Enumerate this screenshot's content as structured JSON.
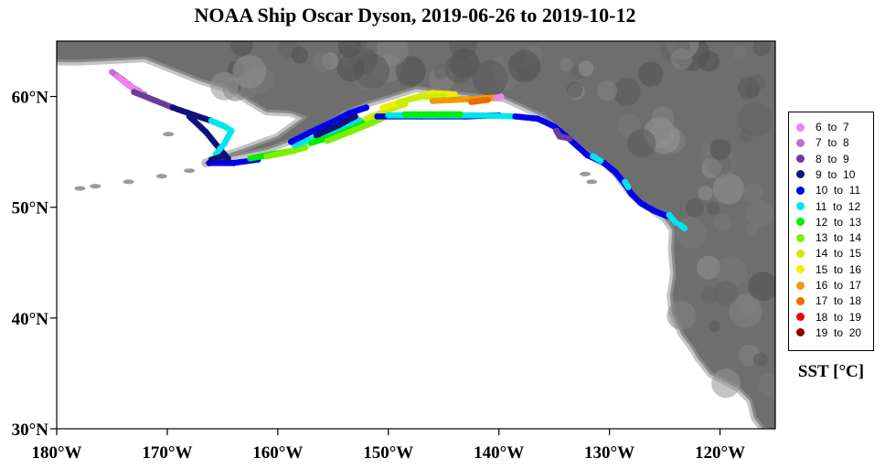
{
  "title": "NOAA Ship Oscar Dyson, 2019-06-26 to 2019-10-12",
  "map": {
    "lon_range": [
      -180,
      -115
    ],
    "lat_range": [
      30,
      65
    ],
    "land_color": "#6e6e6e",
    "land_edge_color": "#c4c4c4",
    "lat_ticks": [
      {
        "value": 30,
        "label": "30°N"
      },
      {
        "value": 40,
        "label": "40°N"
      },
      {
        "value": 50,
        "label": "50°N"
      },
      {
        "value": 60,
        "label": "60°N"
      }
    ],
    "lon_ticks": [
      {
        "value": -180,
        "label": "180°W"
      },
      {
        "value": -170,
        "label": "170°W"
      },
      {
        "value": -160,
        "label": "160°W"
      },
      {
        "value": -150,
        "label": "150°W"
      },
      {
        "value": -140,
        "label": "140°W"
      },
      {
        "value": -130,
        "label": "130°W"
      },
      {
        "value": -120,
        "label": "120°W"
      }
    ]
  },
  "legend": {
    "title": "SST [°C]",
    "items": [
      {
        "label": "6  to  7",
        "color": "#ee82ee"
      },
      {
        "label": "7  to  8",
        "color": "#c36bd6"
      },
      {
        "label": "8  to  9",
        "color": "#6a3d9a"
      },
      {
        "label": "9  to  10",
        "color": "#11117a"
      },
      {
        "label": "10  to  11",
        "color": "#0000ee"
      },
      {
        "label": "11  to  12",
        "color": "#00e5ee"
      },
      {
        "label": "12  to  13",
        "color": "#00ee00"
      },
      {
        "label": "13  to  14",
        "color": "#7fee00"
      },
      {
        "label": "14  to  15",
        "color": "#c8ee00"
      },
      {
        "label": "15  to  16",
        "color": "#eeee00"
      },
      {
        "label": "16  to  17",
        "color": "#ee9a00"
      },
      {
        "label": "17  to  18",
        "color": "#ee6a00"
      },
      {
        "label": "18  to  19",
        "color": "#ee0000"
      },
      {
        "label": "19  to  20",
        "color": "#8b0000"
      }
    ]
  },
  "track_segments": [
    {
      "bin": 1,
      "points": [
        [
          -175.0,
          62.2
        ],
        [
          -174.0,
          61.5
        ],
        [
          -173.0,
          60.7
        ]
      ]
    },
    {
      "bin": 0,
      "points": [
        [
          -174.5,
          61.8
        ],
        [
          -173.5,
          61.0
        ],
        [
          -172.5,
          60.5
        ]
      ]
    },
    {
      "bin": 2,
      "points": [
        [
          -173.0,
          60.4
        ],
        [
          -171.0,
          59.6
        ],
        [
          -169.5,
          59.0
        ]
      ]
    },
    {
      "bin": 3,
      "points": [
        [
          -169.5,
          59.0
        ],
        [
          -167.5,
          58.3
        ],
        [
          -166.0,
          57.8
        ]
      ]
    },
    {
      "bin": 3,
      "points": [
        [
          -168.0,
          58.2
        ],
        [
          -166.5,
          56.8
        ],
        [
          -165.2,
          55.2
        ],
        [
          -164.5,
          54.4
        ]
      ]
    },
    {
      "bin": 5,
      "points": [
        [
          -166.0,
          57.8
        ],
        [
          -164.8,
          57.3
        ],
        [
          -164.2,
          56.9
        ]
      ]
    },
    {
      "bin": 5,
      "points": [
        [
          -164.2,
          56.9
        ],
        [
          -164.8,
          55.8
        ],
        [
          -165.6,
          54.8
        ]
      ]
    },
    {
      "bin": 4,
      "points": [
        [
          -166.2,
          54.0
        ],
        [
          -164.0,
          54.0
        ],
        [
          -161.8,
          54.3
        ]
      ]
    },
    {
      "bin": 3,
      "points": [
        [
          -166.0,
          54.3
        ],
        [
          -165.0,
          54.6
        ],
        [
          -164.5,
          54.4
        ]
      ]
    },
    {
      "bin": 6,
      "points": [
        [
          -162.5,
          54.4
        ],
        [
          -160.5,
          54.8
        ],
        [
          -158.5,
          55.1
        ]
      ]
    },
    {
      "bin": 7,
      "points": [
        [
          -161.0,
          54.6
        ],
        [
          -159.0,
          55.0
        ],
        [
          -157.5,
          55.4
        ]
      ]
    },
    {
      "bin": 5,
      "points": [
        [
          -158.5,
          55.6
        ],
        [
          -156.5,
          56.3
        ],
        [
          -154.5,
          57.0
        ],
        [
          -152.5,
          57.8
        ]
      ]
    },
    {
      "bin": 4,
      "points": [
        [
          -158.8,
          55.9
        ],
        [
          -157.0,
          56.8
        ],
        [
          -155.5,
          57.5
        ],
        [
          -153.5,
          58.5
        ],
        [
          -152.0,
          59.0
        ]
      ]
    },
    {
      "bin": 3,
      "points": [
        [
          -156.5,
          56.5
        ],
        [
          -154.5,
          57.4
        ],
        [
          -153.0,
          58.2
        ]
      ]
    },
    {
      "bin": 6,
      "points": [
        [
          -157.0,
          55.8
        ],
        [
          -155.0,
          56.4
        ],
        [
          -153.0,
          57.2
        ],
        [
          -151.5,
          58.0
        ]
      ]
    },
    {
      "bin": 7,
      "points": [
        [
          -155.5,
          56.0
        ],
        [
          -153.5,
          56.8
        ],
        [
          -151.5,
          57.6
        ],
        [
          -150.0,
          58.3
        ]
      ]
    },
    {
      "bin": 8,
      "points": [
        [
          -152.0,
          58.0
        ],
        [
          -150.0,
          58.8
        ],
        [
          -148.5,
          59.3
        ]
      ]
    },
    {
      "bin": 9,
      "points": [
        [
          -150.5,
          59.0
        ],
        [
          -148.0,
          59.8
        ],
        [
          -146.0,
          60.3
        ],
        [
          -144.0,
          60.2
        ]
      ]
    },
    {
      "bin": 8,
      "points": [
        [
          -149.0,
          59.5
        ],
        [
          -147.0,
          60.0
        ],
        [
          -145.0,
          60.0
        ]
      ]
    },
    {
      "bin": 10,
      "points": [
        [
          -146.0,
          59.6
        ],
        [
          -144.0,
          59.7
        ],
        [
          -142.0,
          59.8
        ],
        [
          -140.5,
          59.9
        ]
      ]
    },
    {
      "bin": 11,
      "points": [
        [
          -142.5,
          59.5
        ],
        [
          -141.0,
          59.7
        ]
      ]
    },
    {
      "bin": 0,
      "points": [
        [
          -140.2,
          59.9
        ],
        [
          -139.8,
          60.0
        ]
      ]
    },
    {
      "bin": 4,
      "points": [
        [
          -151.0,
          58.2
        ],
        [
          -147.0,
          58.2
        ],
        [
          -143.0,
          58.2
        ],
        [
          -140.0,
          58.3
        ]
      ]
    },
    {
      "bin": 5,
      "points": [
        [
          -150.0,
          58.3
        ],
        [
          -146.0,
          58.3
        ],
        [
          -142.0,
          58.3
        ],
        [
          -138.5,
          58.2
        ]
      ]
    },
    {
      "bin": 6,
      "points": [
        [
          -148.5,
          58.4
        ],
        [
          -145.0,
          58.4
        ],
        [
          -143.5,
          58.4
        ]
      ]
    },
    {
      "bin": 4,
      "points": [
        [
          -138.5,
          58.2
        ],
        [
          -136.5,
          58.0
        ],
        [
          -135.0,
          57.3
        ],
        [
          -134.0,
          56.5
        ],
        [
          -133.0,
          55.6
        ],
        [
          -132.0,
          54.7
        ],
        [
          -130.5,
          54.0
        ],
        [
          -129.5,
          53.2
        ],
        [
          -128.6,
          52.1
        ],
        [
          -128.0,
          51.2
        ],
        [
          -127.2,
          50.4
        ],
        [
          -126.0,
          49.7
        ],
        [
          -124.8,
          49.2
        ]
      ]
    },
    {
      "bin": 2,
      "points": [
        [
          -134.8,
          56.9
        ],
        [
          -134.5,
          56.4
        ],
        [
          -133.6,
          56.2
        ]
      ]
    },
    {
      "bin": 5,
      "points": [
        [
          -131.5,
          54.6
        ],
        [
          -130.8,
          54.2
        ]
      ]
    },
    {
      "bin": 5,
      "points": [
        [
          -128.6,
          52.3
        ],
        [
          -128.3,
          51.8
        ]
      ]
    },
    {
      "bin": 5,
      "points": [
        [
          -124.6,
          49.3
        ],
        [
          -124.0,
          48.6
        ]
      ]
    },
    {
      "bin": 5,
      "points": [
        [
          -123.6,
          48.4
        ],
        [
          -123.2,
          48.1
        ]
      ]
    }
  ]
}
